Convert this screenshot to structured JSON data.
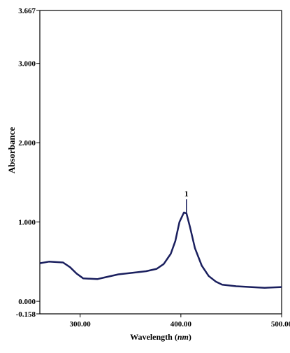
{
  "chart_data": {
    "type": "line",
    "xlabel": [
      "Wavelength (",
      "nm",
      ")"
    ],
    "ylabel": "Absorbance",
    "x": [
      260,
      269,
      283,
      290,
      296.5,
      303,
      317,
      324,
      338,
      352,
      365.5,
      376,
      383,
      390,
      394.5,
      398.6,
      403,
      405.5,
      409,
      414,
      420.7,
      427.6,
      434.5,
      441,
      455,
      469,
      483,
      500
    ],
    "series": [
      {
        "color": "#1a1f5e",
        "values": [
          0.48,
          0.5,
          0.49,
          0.43,
          0.35,
          0.29,
          0.28,
          0.3,
          0.34,
          0.36,
          0.38,
          0.41,
          0.47,
          0.6,
          0.76,
          1.0,
          1.12,
          1.11,
          0.94,
          0.67,
          0.45,
          0.32,
          0.25,
          0.21,
          0.19,
          0.18,
          0.17,
          0.18
        ]
      }
    ],
    "annotations": [
      {
        "label": "1",
        "x": 405.5
      }
    ],
    "xlim": [
      260,
      500
    ],
    "ylim": [
      -0.158,
      3.667
    ],
    "xticks": [
      {
        "value": 300,
        "label": "300.00"
      },
      {
        "value": 400,
        "label": "400.00"
      },
      {
        "value": 500,
        "label": "500.00"
      }
    ],
    "yticks": [
      -0.158,
      {
        "value": 0,
        "label": "0.000"
      },
      {
        "value": 1,
        "label": "1.000"
      },
      {
        "value": 2,
        "label": "2.000"
      },
      {
        "value": 3,
        "label": "3.000"
      },
      3.667
    ]
  }
}
